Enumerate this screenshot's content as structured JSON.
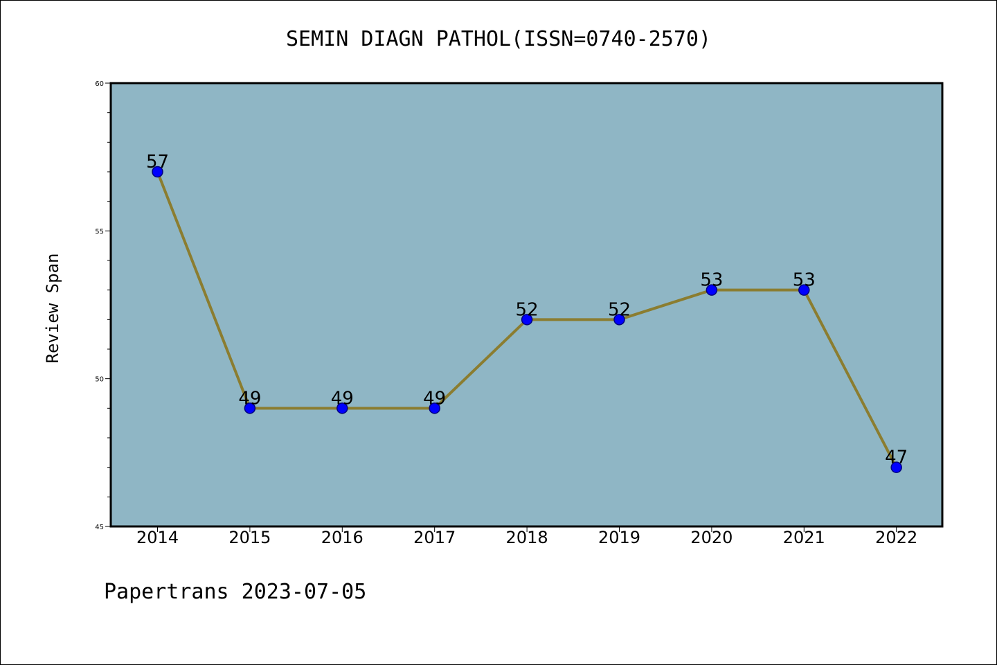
{
  "chart_data": {
    "type": "line",
    "title": "SEMIN DIAGN PATHOL(ISSN=0740-2570)",
    "ylabel": "Review Span",
    "xlabel": "",
    "categories": [
      "2014",
      "2015",
      "2016",
      "2017",
      "2018",
      "2019",
      "2020",
      "2021",
      "2022"
    ],
    "series": [
      {
        "values": [
          57,
          49,
          49,
          49,
          52,
          52,
          53,
          53,
          47
        ]
      }
    ],
    "ylim": [
      45,
      60
    ],
    "yticks": [
      45,
      50,
      55,
      60
    ],
    "grid": false,
    "colors": {
      "plot_background": "#8fb6c5",
      "line": "#8b7d30",
      "marker": "#0000ff",
      "marker_edge": "#000080"
    }
  },
  "footer": "Papertrans 2023-07-05"
}
